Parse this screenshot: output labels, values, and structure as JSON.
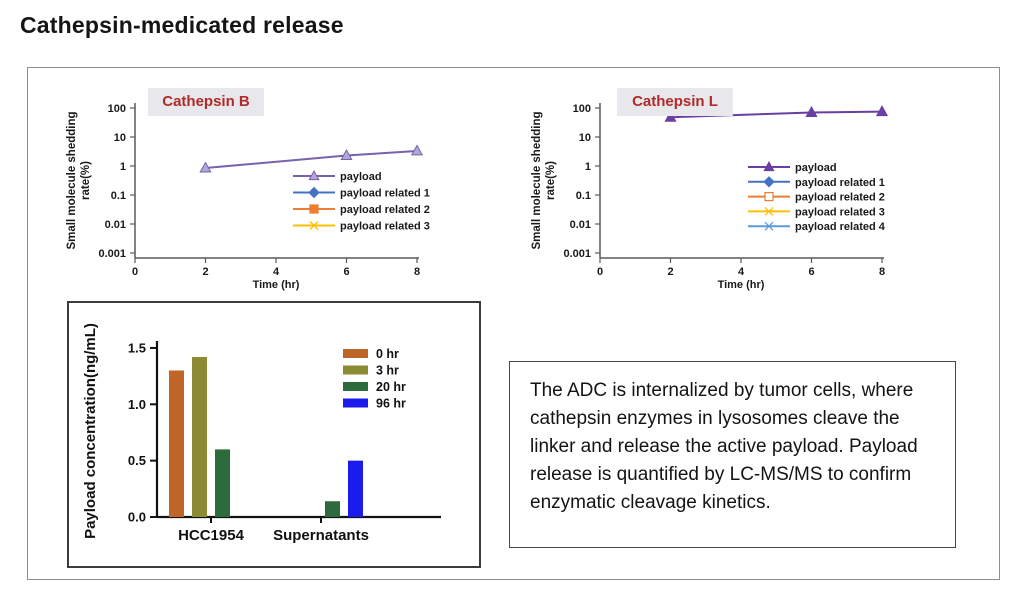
{
  "page": {
    "title": "Cathepsin-medicated release"
  },
  "description_box": {
    "text": "The ADC is internalized by tumor cells, where cathepsin enzymes in lysosomes cleave the linker and release the active payload. Payload release is quantified by LC-MS/MS to confirm enzymatic cleavage kinetics."
  },
  "chart_data": [
    {
      "id": "cathepsin-b",
      "type": "line",
      "title": "Cathepsin B",
      "title_color": "#B02A2A",
      "title_bg": "#E8E7EB",
      "xlabel": "Time (hr)",
      "ylabel": "Small molecule shedding rate(%)",
      "ylabel_lines": [
        "Small molecule shedding",
        "rate(%)"
      ],
      "y_scale": "log",
      "ylim": [
        0.001,
        100
      ],
      "ytick_labels": [
        "100",
        "10",
        "1",
        "0.1",
        "0.01",
        "0.001"
      ],
      "xlim": [
        0,
        8
      ],
      "xticks": [
        0,
        2,
        4,
        6,
        8
      ],
      "grid": false,
      "legend_position": "center-right",
      "series": [
        {
          "name": "payload",
          "color": "#7762AE",
          "marker": "triangle",
          "marker_fill": "#B3A6D8",
          "x": [
            2,
            6,
            8
          ],
          "y": [
            0.85,
            2.3,
            3.3
          ]
        },
        {
          "name": "payload related 1",
          "color": "#4472C4",
          "marker": "diamond",
          "marker_fill": "#4472C4",
          "x": [],
          "y": []
        },
        {
          "name": "payload related 2",
          "color": "#ED7D31",
          "marker": "square",
          "marker_fill": "#ED7D31",
          "x": [],
          "y": []
        },
        {
          "name": "payload related 3",
          "color": "#FFC000",
          "marker": "x",
          "marker_fill": "#FFC000",
          "x": [],
          "y": []
        }
      ]
    },
    {
      "id": "cathepsin-l",
      "type": "line",
      "title": "Cathepsin L",
      "title_color": "#B02A2A",
      "title_bg": "#E8E7EB",
      "xlabel": "Time (hr)",
      "ylabel": "Small molecule shedding rate(%)",
      "ylabel_lines": [
        "Small molecule shedding",
        "rate(%)"
      ],
      "y_scale": "log",
      "ylim": [
        0.001,
        100
      ],
      "ytick_labels": [
        "100",
        "10",
        "1",
        "0.1",
        "0.01",
        "0.001"
      ],
      "xlim": [
        0,
        8
      ],
      "xticks": [
        0,
        2,
        4,
        6,
        8
      ],
      "grid": false,
      "legend_position": "center-right",
      "series": [
        {
          "name": "payload",
          "color": "#6A3FA3",
          "marker": "triangle",
          "marker_fill": "#6A3FA3",
          "x": [
            2,
            6,
            8
          ],
          "y": [
            48,
            70,
            75
          ]
        },
        {
          "name": "payload related 1",
          "color": "#4472C4",
          "marker": "diamond",
          "marker_fill": "#4472C4",
          "x": [],
          "y": []
        },
        {
          "name": "payload related 2",
          "color": "#ED7D31",
          "marker": "square-open",
          "marker_fill": "#FFFFFF",
          "x": [],
          "y": []
        },
        {
          "name": "payload related 3",
          "color": "#FFC000",
          "marker": "x",
          "marker_fill": "#FFC000",
          "x": [],
          "y": []
        },
        {
          "name": "payload related 4",
          "color": "#5B9BD5",
          "marker": "asterisk",
          "marker_fill": "#5B9BD5",
          "x": [],
          "y": []
        }
      ]
    },
    {
      "id": "payload-concentration",
      "type": "bar",
      "title": "",
      "xlabel": "",
      "ylabel": "Payload concentration(ng/mL)",
      "ylim": [
        0,
        1.5
      ],
      "ytick_labels": [
        "0.0",
        "0.5",
        "1.0",
        "1.5"
      ],
      "yticks": [
        0,
        0.5,
        1.0,
        1.5
      ],
      "grid": false,
      "legend_position": "upper-right",
      "categories": [
        "HCC1954",
        "Supernatants"
      ],
      "series": [
        {
          "name": "0 hr",
          "color": "#BF6528",
          "values": [
            1.3,
            0
          ]
        },
        {
          "name": "3 hr",
          "color": "#8B8B33",
          "values": [
            1.42,
            0
          ]
        },
        {
          "name": "20 hr",
          "color": "#2E6B3C",
          "values": [
            0.6,
            0.14
          ]
        },
        {
          "name": "96 hr",
          "color": "#1B1BEB",
          "values": [
            0,
            0.5
          ]
        }
      ]
    }
  ]
}
